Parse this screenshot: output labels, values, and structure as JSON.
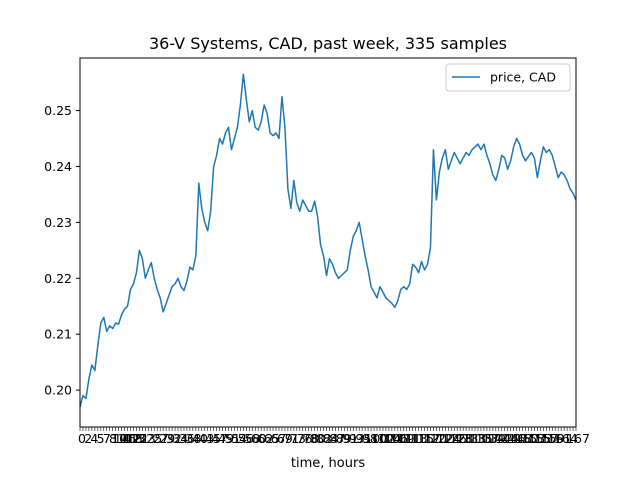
{
  "chart_data": {
    "type": "line",
    "title": "36-V Systems, CAD, past week, 335 samples",
    "xlabel": "time, hours",
    "ylabel": "",
    "xlim": [
      0,
      167
    ],
    "ylim": [
      0.1934,
      0.2594
    ],
    "yticks": [
      0.2,
      0.21,
      0.22,
      0.23,
      0.24,
      0.25
    ],
    "ytick_labels": [
      "0.20",
      "0.21",
      "0.22",
      "0.23",
      "0.24",
      "0.25"
    ],
    "xtick_labels_visible": [
      "0",
      "2",
      "4",
      "5",
      "7",
      "8",
      "10",
      "11",
      "12",
      "13",
      "167"
    ],
    "legend": {
      "position": "top-right"
    },
    "grid": false,
    "series": [
      {
        "name": "price, CAD",
        "color": "#1f77b4",
        "points": [
          [
            0,
            0.197
          ],
          [
            1,
            0.199
          ],
          [
            2,
            0.1985
          ],
          [
            3,
            0.202
          ],
          [
            4,
            0.2045
          ],
          [
            5,
            0.2035
          ],
          [
            6,
            0.208
          ],
          [
            7,
            0.212
          ],
          [
            8,
            0.213
          ],
          [
            9,
            0.2105
          ],
          [
            10,
            0.2115
          ],
          [
            11,
            0.211
          ],
          [
            12,
            0.212
          ],
          [
            13,
            0.2118
          ],
          [
            14,
            0.2135
          ],
          [
            15,
            0.2145
          ],
          [
            16,
            0.215
          ],
          [
            17,
            0.218
          ],
          [
            18,
            0.219
          ],
          [
            19,
            0.221
          ],
          [
            20,
            0.225
          ],
          [
            21,
            0.2235
          ],
          [
            22,
            0.22
          ],
          [
            23,
            0.2215
          ],
          [
            24,
            0.2228
          ],
          [
            25,
            0.22
          ],
          [
            26,
            0.218
          ],
          [
            27,
            0.2165
          ],
          [
            28,
            0.214
          ],
          [
            29,
            0.2155
          ],
          [
            30,
            0.217
          ],
          [
            31,
            0.2185
          ],
          [
            32,
            0.219
          ],
          [
            33,
            0.22
          ],
          [
            34,
            0.2185
          ],
          [
            35,
            0.2178
          ],
          [
            36,
            0.2195
          ],
          [
            37,
            0.222
          ],
          [
            38,
            0.2215
          ],
          [
            39,
            0.224
          ],
          [
            40,
            0.237
          ],
          [
            41,
            0.2325
          ],
          [
            42,
            0.23
          ],
          [
            43,
            0.2285
          ],
          [
            44,
            0.232
          ],
          [
            45,
            0.24
          ],
          [
            46,
            0.242
          ],
          [
            47,
            0.245
          ],
          [
            48,
            0.244
          ],
          [
            49,
            0.246
          ],
          [
            50,
            0.247
          ],
          [
            51,
            0.243
          ],
          [
            52,
            0.245
          ],
          [
            53,
            0.247
          ],
          [
            54,
            0.251
          ],
          [
            55,
            0.2565
          ],
          [
            56,
            0.252
          ],
          [
            57,
            0.248
          ],
          [
            58,
            0.25
          ],
          [
            59,
            0.247
          ],
          [
            60,
            0.2465
          ],
          [
            61,
            0.248
          ],
          [
            62,
            0.251
          ],
          [
            63,
            0.2495
          ],
          [
            64,
            0.246
          ],
          [
            65,
            0.2455
          ],
          [
            66,
            0.246
          ],
          [
            67,
            0.245
          ],
          [
            68,
            0.2525
          ],
          [
            69,
            0.247
          ],
          [
            70,
            0.236
          ],
          [
            71,
            0.2325
          ],
          [
            72,
            0.2375
          ],
          [
            73,
            0.2335
          ],
          [
            74,
            0.232
          ],
          [
            75,
            0.234
          ],
          [
            76,
            0.233
          ],
          [
            77,
            0.232
          ],
          [
            78,
            0.232
          ],
          [
            79,
            0.2338
          ],
          [
            80,
            0.231
          ],
          [
            81,
            0.226
          ],
          [
            82,
            0.224
          ],
          [
            83,
            0.2205
          ],
          [
            84,
            0.2235
          ],
          [
            85,
            0.2225
          ],
          [
            86,
            0.221
          ],
          [
            87,
            0.22
          ],
          [
            88,
            0.2205
          ],
          [
            89,
            0.221
          ],
          [
            90,
            0.2215
          ],
          [
            91,
            0.225
          ],
          [
            92,
            0.2275
          ],
          [
            93,
            0.2285
          ],
          [
            94,
            0.23
          ],
          [
            95,
            0.227
          ],
          [
            96,
            0.224
          ],
          [
            97,
            0.2215
          ],
          [
            98,
            0.2185
          ],
          [
            99,
            0.2175
          ],
          [
            100,
            0.2165
          ],
          [
            101,
            0.2185
          ],
          [
            102,
            0.2175
          ],
          [
            103,
            0.2165
          ],
          [
            104,
            0.216
          ],
          [
            105,
            0.2155
          ],
          [
            106,
            0.2148
          ],
          [
            107,
            0.216
          ],
          [
            108,
            0.218
          ],
          [
            109,
            0.2185
          ],
          [
            110,
            0.218
          ],
          [
            111,
            0.219
          ],
          [
            112,
            0.2225
          ],
          [
            113,
            0.222
          ],
          [
            114,
            0.221
          ],
          [
            115,
            0.223
          ],
          [
            116,
            0.2215
          ],
          [
            117,
            0.2225
          ],
          [
            118,
            0.2255
          ],
          [
            119,
            0.243
          ],
          [
            120,
            0.234
          ],
          [
            121,
            0.239
          ],
          [
            122,
            0.2415
          ],
          [
            123,
            0.243
          ],
          [
            124,
            0.2395
          ],
          [
            125,
            0.241
          ],
          [
            126,
            0.2425
          ],
          [
            127,
            0.2415
          ],
          [
            128,
            0.2405
          ],
          [
            129,
            0.2415
          ],
          [
            130,
            0.2425
          ],
          [
            131,
            0.242
          ],
          [
            132,
            0.243
          ],
          [
            133,
            0.2435
          ],
          [
            134,
            0.244
          ],
          [
            135,
            0.243
          ],
          [
            136,
            0.244
          ],
          [
            137,
            0.242
          ],
          [
            138,
            0.2405
          ],
          [
            139,
            0.2385
          ],
          [
            140,
            0.2375
          ],
          [
            141,
            0.2395
          ],
          [
            142,
            0.242
          ],
          [
            143,
            0.2415
          ],
          [
            144,
            0.2395
          ],
          [
            145,
            0.241
          ],
          [
            146,
            0.2435
          ],
          [
            147,
            0.245
          ],
          [
            148,
            0.244
          ],
          [
            149,
            0.242
          ],
          [
            150,
            0.241
          ],
          [
            151,
            0.2418
          ],
          [
            152,
            0.2425
          ],
          [
            153,
            0.2415
          ],
          [
            154,
            0.238
          ],
          [
            155,
            0.241
          ],
          [
            156,
            0.2435
          ],
          [
            157,
            0.2425
          ],
          [
            158,
            0.243
          ],
          [
            159,
            0.242
          ],
          [
            160,
            0.24
          ],
          [
            161,
            0.238
          ],
          [
            162,
            0.239
          ],
          [
            163,
            0.2385
          ],
          [
            164,
            0.2375
          ],
          [
            165,
            0.236
          ],
          [
            166,
            0.2352
          ],
          [
            167,
            0.234
          ]
        ]
      }
    ]
  }
}
